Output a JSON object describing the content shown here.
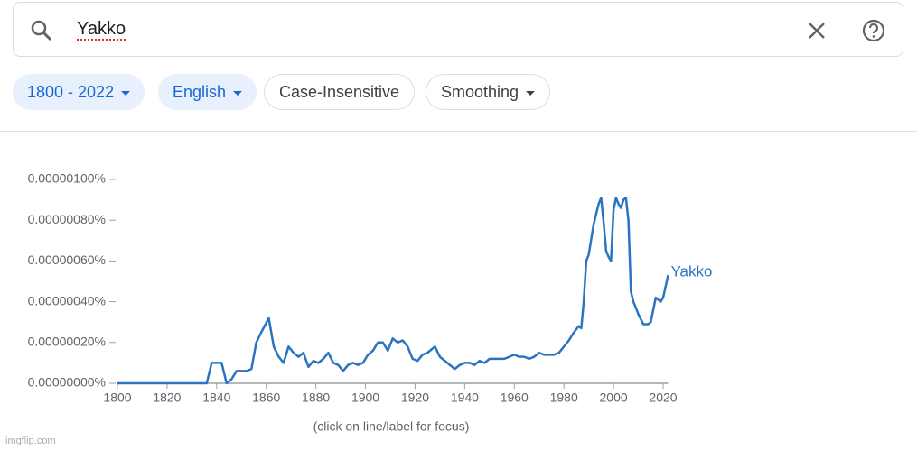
{
  "search": {
    "query": "Yakko"
  },
  "filters": {
    "years": "1800 - 2022",
    "corpus": "English",
    "case": "Case-Insensitive",
    "smoothing": "Smoothing"
  },
  "chart_data": {
    "type": "line",
    "x": [
      1800,
      1836,
      1838,
      1842,
      1844,
      1846,
      1848,
      1852,
      1854,
      1856,
      1858,
      1861,
      1863,
      1865,
      1867,
      1869,
      1871,
      1873,
      1875,
      1877,
      1879,
      1881,
      1883,
      1885,
      1887,
      1889,
      1891,
      1893,
      1895,
      1897,
      1899,
      1901,
      1903,
      1905,
      1907,
      1909,
      1911,
      1913,
      1915,
      1917,
      1919,
      1921,
      1923,
      1925,
      1927,
      1928,
      1930,
      1932,
      1934,
      1936,
      1938,
      1940,
      1942,
      1944,
      1946,
      1948,
      1950,
      1952,
      1954,
      1956,
      1958,
      1960,
      1962,
      1964,
      1966,
      1968,
      1970,
      1972,
      1974,
      1976,
      1978,
      1980,
      1982,
      1984,
      1986,
      1987,
      1988,
      1989,
      1990,
      1992,
      1994,
      1995,
      1996,
      1997,
      1998,
      1999,
      2000,
      2001,
      2002,
      2003,
      2004,
      2005,
      2006,
      2007,
      2008,
      2010,
      2012,
      2014,
      2015,
      2017,
      2018,
      2019,
      2020,
      2022
    ],
    "series": [
      {
        "name": "Yakko",
        "color": "#2b74c1",
        "values": [
          0,
          0,
          1e-07,
          1e-07,
          0,
          2e-08,
          6e-08,
          6e-08,
          7e-08,
          2e-07,
          2.5e-07,
          3.2e-07,
          1.8e-07,
          1.3e-07,
          1e-07,
          1.8e-07,
          1.5e-07,
          1.3e-07,
          1.5e-07,
          8e-08,
          1.1e-07,
          1e-07,
          1.2e-07,
          1.5e-07,
          1e-07,
          9e-08,
          6e-08,
          9e-08,
          1e-07,
          9e-08,
          1e-07,
          1.4e-07,
          1.6e-07,
          2e-07,
          2e-07,
          1.6e-07,
          2.2e-07,
          2e-07,
          2.1e-07,
          1.8e-07,
          1.2e-07,
          1.1e-07,
          1.4e-07,
          1.5e-07,
          1.7e-07,
          1.8e-07,
          1.3e-07,
          1.1e-07,
          9e-08,
          7e-08,
          9e-08,
          1e-07,
          1e-07,
          9e-08,
          1.1e-07,
          1e-07,
          1.2e-07,
          1.2e-07,
          1.2e-07,
          1.2e-07,
          1.3e-07,
          1.4e-07,
          1.3e-07,
          1.3e-07,
          1.2e-07,
          1.3e-07,
          1.5e-07,
          1.4e-07,
          1.4e-07,
          1.4e-07,
          1.5e-07,
          1.8e-07,
          2.1e-07,
          2.5e-07,
          2.8e-07,
          2.7e-07,
          4e-07,
          6e-07,
          6.3e-07,
          7.8e-07,
          8.8e-07,
          9.1e-07,
          7.9e-07,
          6.5e-07,
          6.2e-07,
          6e-07,
          8.5e-07,
          9.1e-07,
          8.8e-07,
          8.6e-07,
          9e-07,
          9.1e-07,
          8e-07,
          4.5e-07,
          4e-07,
          3.4e-07,
          2.9e-07,
          2.9e-07,
          3e-07,
          4.2e-07,
          4.1e-07,
          4e-07,
          4.2e-07,
          5.3e-07
        ]
      }
    ],
    "xlim": [
      1800,
      2022
    ],
    "xticks": [
      1800,
      1820,
      1840,
      1860,
      1880,
      1900,
      1920,
      1940,
      1960,
      1980,
      2000,
      2020
    ],
    "ylim": [
      0,
      1e-06
    ],
    "yticks": [
      {
        "value": 0,
        "label": "0.00000000%"
      },
      {
        "value": 2e-07,
        "label": "0.00000020%"
      },
      {
        "value": 4e-07,
        "label": "0.00000040%"
      },
      {
        "value": 6e-07,
        "label": "0.00000060%"
      },
      {
        "value": 8e-07,
        "label": "0.00000080%"
      },
      {
        "value": 1e-06,
        "label": "0.00000100%"
      }
    ],
    "x_label": "(click on line/label for focus)"
  },
  "watermark": "imgflip.com"
}
